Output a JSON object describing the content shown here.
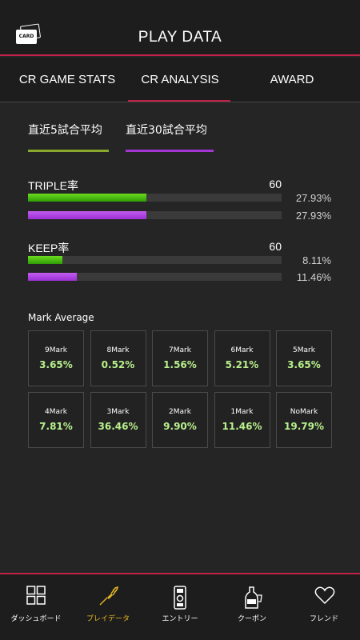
{
  "header": {
    "card_icon_text": "CARD",
    "title": "PLAY DATA"
  },
  "tabs": [
    {
      "label": "CR GAME STATS",
      "active": false
    },
    {
      "label": "CR ANALYSIS",
      "active": true
    },
    {
      "label": "AWARD",
      "active": false
    }
  ],
  "periods": [
    {
      "label": "直近5試合平均",
      "color": "#8aa82c"
    },
    {
      "label": "直近30試合平均",
      "color": "#a436d4"
    }
  ],
  "stats": {
    "triple": {
      "label": "TRIPLE率",
      "max": "60",
      "recent5": "27.93%",
      "recent30": "27.93%",
      "recent5_value": 27.93,
      "recent30_value": 27.93,
      "max_value": 60
    },
    "keep": {
      "label": "KEEP率",
      "max": "60",
      "recent5": "8.11%",
      "recent30": "11.46%",
      "recent5_value": 8.11,
      "recent30_value": 11.46,
      "max_value": 60
    }
  },
  "mark_average": {
    "title": "Mark Average",
    "cells": [
      {
        "label": "9Mark",
        "value": "3.65%"
      },
      {
        "label": "8Mark",
        "value": "0.52%"
      },
      {
        "label": "7Mark",
        "value": "1.56%"
      },
      {
        "label": "6Mark",
        "value": "5.21%"
      },
      {
        "label": "5Mark",
        "value": "3.65%"
      },
      {
        "label": "4Mark",
        "value": "7.81%"
      },
      {
        "label": "3Mark",
        "value": "36.46%"
      },
      {
        "label": "2Mark",
        "value": "9.90%"
      },
      {
        "label": "1Mark",
        "value": "11.46%"
      },
      {
        "label": "NoMark",
        "value": "19.79%"
      }
    ]
  },
  "nav": [
    {
      "label": "ダッシュボード",
      "icon": "grid-icon",
      "active": false
    },
    {
      "label": "プレイデータ",
      "icon": "dart-icon",
      "active": true
    },
    {
      "label": "エントリー",
      "icon": "machine-icon",
      "active": false
    },
    {
      "label": "クーポン",
      "icon": "bottle-icon",
      "active": false
    },
    {
      "label": "フレンド",
      "icon": "heart-icon",
      "active": false
    }
  ],
  "colors": {
    "accent": "#c2214a",
    "green": "#4cc614",
    "purple": "#b04ae6",
    "mark_value": "#b8f08c",
    "nav_active": "#e3b526"
  }
}
